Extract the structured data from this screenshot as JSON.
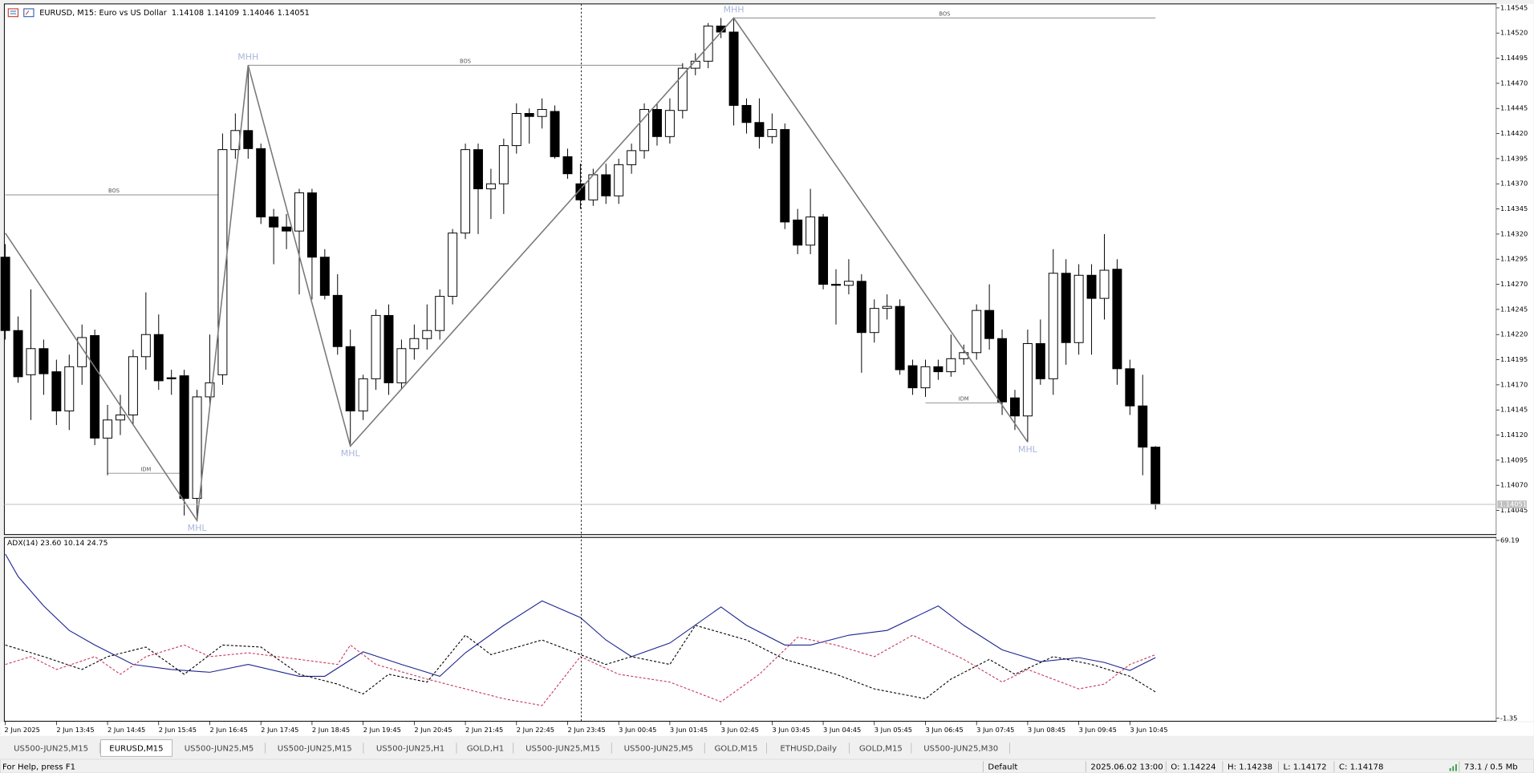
{
  "chart_data": [
    {
      "type": "candlestick",
      "title": "EURUSD, M15:  Euro vs US Dollar",
      "categories": [
        "2 Jun 2025",
        null,
        null,
        null,
        "2 Jun 13:45",
        null,
        null,
        null,
        "2 Jun 14:45",
        null,
        null,
        null,
        "2 Jun 15:45",
        null,
        null,
        null,
        "2 Jun 16:45",
        null,
        null,
        null,
        "2 Jun 17:45",
        null,
        null,
        null,
        "2 Jun 18:45",
        null,
        null,
        null,
        "2 Jun 19:45",
        null,
        null,
        null,
        "2 Jun 20:45",
        null,
        null,
        null,
        "2 Jun 21:45",
        null,
        null,
        null,
        "2 Jun 22:45",
        null,
        null,
        null,
        "2 Jun 23:45",
        null,
        null,
        null,
        "3 Jun 00:45",
        null,
        null,
        null,
        "3 Jun 01:45",
        null,
        null,
        null,
        "3 Jun 02:45",
        null,
        null,
        null,
        "3 Jun 03:45",
        null,
        null,
        null,
        "3 Jun 04:45",
        null,
        null,
        null,
        "3 Jun 05:45",
        null,
        null,
        null,
        "3 Jun 06:45",
        null,
        null,
        null,
        "3 Jun 07:45",
        null,
        null,
        null,
        "3 Jun 08:45",
        null,
        null,
        null,
        "3 Jun 09:45",
        null,
        null,
        null,
        "3 Jun 10:45",
        null,
        null
      ],
      "open": [
        1.14297,
        1.14224,
        1.1418,
        1.14206,
        1.14183,
        1.14144,
        1.14188,
        1.14219,
        1.14117,
        1.14135,
        1.1414,
        1.14198,
        1.1422,
        1.14177,
        1.14179,
        1.14057,
        1.14158,
        1.1418,
        1.14404,
        1.14423,
        1.14405,
        1.14337,
        1.14327,
        1.14323,
        1.14361,
        1.14297,
        1.14259,
        1.14208,
        1.14144,
        1.14176,
        1.14239,
        1.14172,
        1.14206,
        1.14216,
        1.14224,
        1.14258,
        1.14321,
        1.14404,
        1.14365,
        1.1437,
        1.14408,
        1.1444,
        1.14437,
        1.14442,
        1.14397,
        1.1437,
        1.14354,
        1.14379,
        1.14358,
        1.14389,
        1.14403,
        1.14444,
        1.14417,
        1.14443,
        1.14485,
        1.14492,
        1.14527,
        1.14521,
        1.14448,
        1.14431,
        1.14417,
        1.14424,
        1.14334,
        1.14309,
        1.14337,
        1.1427,
        1.14269,
        1.14273,
        1.14222,
        1.14246,
        1.14248,
        1.14189,
        1.14167,
        1.14188,
        1.14183,
        1.14196,
        1.14202,
        1.14244,
        1.14216,
        1.14157,
        1.14139,
        1.14211,
        1.14176,
        1.14281,
        1.14212,
        1.14279,
        1.14256,
        1.14285,
        1.14186,
        1.14149,
        1.14108
      ],
      "high": [
        1.1431,
        1.14238,
        1.14265,
        1.14215,
        1.14195,
        1.142,
        1.1423,
        1.14225,
        1.1415,
        1.1416,
        1.14205,
        1.14262,
        1.1424,
        1.14185,
        1.14185,
        1.14165,
        1.1422,
        1.1442,
        1.1444,
        1.14488,
        1.1441,
        1.14345,
        1.1434,
        1.14365,
        1.14365,
        1.14305,
        1.1428,
        1.14225,
        1.1418,
        1.14245,
        1.1425,
        1.14215,
        1.1423,
        1.1425,
        1.14265,
        1.14325,
        1.1441,
        1.1441,
        1.14385,
        1.14415,
        1.1445,
        1.14445,
        1.14455,
        1.14448,
        1.14405,
        1.1439,
        1.14385,
        1.1439,
        1.14395,
        1.1441,
        1.1445,
        1.1445,
        1.14455,
        1.1449,
        1.145,
        1.1453,
        1.14535,
        1.14535,
        1.14455,
        1.14455,
        1.1444,
        1.1443,
        1.14345,
        1.14365,
        1.1434,
        1.14285,
        1.14295,
        1.1428,
        1.14255,
        1.1426,
        1.14255,
        1.14195,
        1.14195,
        1.14195,
        1.1422,
        1.1421,
        1.1425,
        1.1427,
        1.14225,
        1.14165,
        1.14225,
        1.14235,
        1.14305,
        1.14295,
        1.1429,
        1.1429,
        1.1432,
        1.14295,
        1.14195,
        1.1418,
        1.14109
      ],
      "low": [
        1.14215,
        1.14172,
        1.14135,
        1.1416,
        1.1413,
        1.14125,
        1.1417,
        1.1411,
        1.1408,
        1.1412,
        1.1413,
        1.14185,
        1.14165,
        1.1416,
        1.1404,
        1.14035,
        1.1415,
        1.1417,
        1.14395,
        1.14395,
        1.1433,
        1.1429,
        1.14305,
        1.1426,
        1.14255,
        1.14255,
        1.142,
        1.14109,
        1.14135,
        1.14165,
        1.1416,
        1.14165,
        1.14195,
        1.14205,
        1.14215,
        1.1425,
        1.14315,
        1.1432,
        1.14335,
        1.1434,
        1.144,
        1.1441,
        1.14425,
        1.14395,
        1.14375,
        1.14345,
        1.14348,
        1.1435,
        1.1435,
        1.1438,
        1.14395,
        1.14408,
        1.1441,
        1.14435,
        1.14478,
        1.14485,
        1.14515,
        1.14428,
        1.1442,
        1.14405,
        1.1441,
        1.14325,
        1.143,
        1.143,
        1.14265,
        1.1423,
        1.1426,
        1.14182,
        1.14212,
        1.14235,
        1.1418,
        1.1416,
        1.14158,
        1.14175,
        1.14178,
        1.1419,
        1.14195,
        1.14205,
        1.1414,
        1.14125,
        1.14113,
        1.1417,
        1.1416,
        1.1419,
        1.142,
        1.142,
        1.14235,
        1.1417,
        1.1414,
        1.1408,
        1.14046
      ],
      "close": [
        1.14224,
        1.14178,
        1.14206,
        1.14181,
        1.14144,
        1.14188,
        1.14217,
        1.14117,
        1.14135,
        1.1414,
        1.14198,
        1.1422,
        1.14174,
        1.14176,
        1.14057,
        1.14158,
        1.14172,
        1.14404,
        1.14423,
        1.14405,
        1.14337,
        1.14327,
        1.14323,
        1.14361,
        1.14297,
        1.14259,
        1.14208,
        1.14144,
        1.14176,
        1.14239,
        1.14172,
        1.14206,
        1.14216,
        1.14224,
        1.14258,
        1.14321,
        1.14404,
        1.14365,
        1.1437,
        1.14408,
        1.1444,
        1.14437,
        1.14444,
        1.14397,
        1.1438,
        1.14354,
        1.14379,
        1.14358,
        1.14389,
        1.14403,
        1.14444,
        1.14417,
        1.14443,
        1.14485,
        1.14492,
        1.14527,
        1.14521,
        1.14448,
        1.14431,
        1.14417,
        1.14424,
        1.14332,
        1.14309,
        1.14337,
        1.1427,
        1.14269,
        1.14273,
        1.14222,
        1.14246,
        1.14248,
        1.14185,
        1.14167,
        1.14188,
        1.14183,
        1.14196,
        1.14202,
        1.14244,
        1.14216,
        1.14153,
        1.14139,
        1.14211,
        1.14176,
        1.14281,
        1.14212,
        1.14279,
        1.14256,
        1.14284,
        1.14186,
        1.14149,
        1.14108,
        1.14051
      ],
      "ylim": [
        1.14021,
        1.14549
      ],
      "yticks": [
        1.14545,
        {
          "value": 1.1452,
          "label": "1.14520"
        },
        1.14495,
        {
          "value": 1.1447,
          "label": "1.14470"
        },
        1.14445,
        {
          "value": 1.1442,
          "label": "1.14420"
        },
        1.14395,
        {
          "value": 1.1437,
          "label": "1.14370"
        },
        1.14345,
        {
          "value": 1.1432,
          "label": "1.14320"
        },
        1.14295,
        {
          "value": 1.1427,
          "label": "1.14270"
        },
        1.14245,
        {
          "value": 1.1422,
          "label": "1.14220"
        },
        1.14195,
        {
          "value": 1.1417,
          "label": "1.14170"
        },
        1.14145,
        {
          "value": 1.1412,
          "label": "1.14120"
        },
        1.14095,
        {
          "value": 1.1407,
          "label": "1.14070"
        },
        1.14045
      ],
      "up_color": "#ffffff",
      "down_color": "#000000",
      "wick_color": "#000000",
      "zigzag_start": {
        "x": 0,
        "value": 1.14321
      },
      "swings": [
        {
          "label": "MHL",
          "x": 15,
          "value": 1.14035
        },
        {
          "label": "MHH",
          "x": 19,
          "value": 1.14488
        },
        {
          "label": "MHL",
          "x": 27,
          "value": 1.14109
        },
        {
          "label": "MHH",
          "x": 57,
          "value": 1.14535
        },
        {
          "label": "MHL",
          "x": 80,
          "value": 1.14113
        }
      ],
      "swing_color": "#a9b6dc",
      "zigzag_color": "#7a7a7a",
      "levels": [
        {
          "label": "BOS",
          "value": 1.14359,
          "from": 0,
          "to": 17
        },
        {
          "label": "BOS",
          "value": 1.14488,
          "from": 19,
          "to": 53
        },
        {
          "label": "BOS",
          "value": 1.14535,
          "from": 57,
          "to": 90
        },
        {
          "label": "IDM",
          "value": 1.14082,
          "from": 8,
          "to": 14
        },
        {
          "label": "IDM",
          "value": 1.14152,
          "from": 72,
          "to": 78
        }
      ],
      "level_color": "#8c8c8c",
      "bid_color": "#c0c0c0"
    },
    {
      "type": "line",
      "title": "ADX(14) 23.60 10.14 24.75",
      "ylim": [
        -1.35,
        69.19
      ],
      "yticks": [
        69.19,
        -1.35
      ],
      "series": [
        {
          "color": "#1c2590",
          "dashed": false,
          "x": [
            0,
            1,
            3,
            5,
            7,
            10,
            13,
            16,
            19,
            23,
            25,
            28,
            31,
            34,
            36,
            39,
            42,
            45,
            47,
            49,
            52,
            56,
            58,
            61,
            63,
            66,
            69,
            73,
            75,
            78,
            81,
            84,
            86,
            88,
            90
          ],
          "values": [
            63.8,
            54.9,
            43.2,
            33.5,
            27.7,
            20.0,
            18.0,
            16.9,
            20.0,
            15.3,
            15.3,
            25.0,
            20.0,
            15.3,
            24.6,
            35.5,
            45.2,
            38.6,
            29.7,
            23.1,
            28.5,
            42.8,
            35.5,
            27.7,
            27.7,
            31.6,
            33.5,
            43.2,
            35.5,
            25.8,
            21.1,
            22.7,
            20.8,
            17.6,
            22.7
          ]
        },
        {
          "color": "#000000",
          "dashed": true,
          "x": [
            0,
            3,
            6,
            8,
            11,
            14,
            17,
            20,
            23,
            26,
            28,
            30,
            33,
            36,
            38,
            42,
            45,
            47,
            49,
            52,
            54,
            58,
            61,
            65,
            68,
            72,
            74,
            77,
            79,
            82,
            85,
            88,
            90
          ],
          "values": [
            27.7,
            23.1,
            18.0,
            23.1,
            26.9,
            16.1,
            27.7,
            26.9,
            16.1,
            12.2,
            8.3,
            16.1,
            13.0,
            31.6,
            23.9,
            29.7,
            23.9,
            20.0,
            23.1,
            20.0,
            35.5,
            29.7,
            22.0,
            16.1,
            10.3,
            6.4,
            14.2,
            22.0,
            16.1,
            23.1,
            20.0,
            15.3,
            9.1
          ]
        },
        {
          "color": "#c8385a",
          "dashed": true,
          "x": [
            0,
            2,
            4,
            7,
            9,
            11,
            14,
            16,
            19,
            23,
            26,
            27,
            29,
            33,
            36,
            39,
            42,
            45,
            48,
            52,
            56,
            59,
            62,
            65,
            68,
            71,
            75,
            78,
            80,
            84,
            86,
            88,
            90
          ],
          "values": [
            20.0,
            23.1,
            18.0,
            23.1,
            16.1,
            23.1,
            27.7,
            23.1,
            24.6,
            22.0,
            20.0,
            27.7,
            20.0,
            14.2,
            10.3,
            6.4,
            3.7,
            23.1,
            16.1,
            13.0,
            5.2,
            16.1,
            30.8,
            27.7,
            23.1,
            31.6,
            22.0,
            13.0,
            18.0,
            10.3,
            12.2,
            20.0,
            23.9
          ]
        }
      ]
    }
  ],
  "tabs": [
    "US500-JUN25,M15",
    "EURUSD,M15",
    "US500-JUN25,M5",
    "US500-JUN25,M15",
    "US500-JUN25,H1",
    "GOLD,H1",
    "US500-JUN25,M15",
    "US500-JUN25,M5",
    "GOLD,M15",
    "ETHUSD,Daily",
    "GOLD,M15",
    "US500-JUN25,M30"
  ],
  "active_tab": 1,
  "status_bar": [
    "For Help, press F1",
    "Default",
    "2025.06.02 13:00",
    "O: 1.14224",
    "H: 1.14238",
    "L: 1.14172",
    "C: 1.14178",
    "73.1 / 0.5 Mb"
  ]
}
